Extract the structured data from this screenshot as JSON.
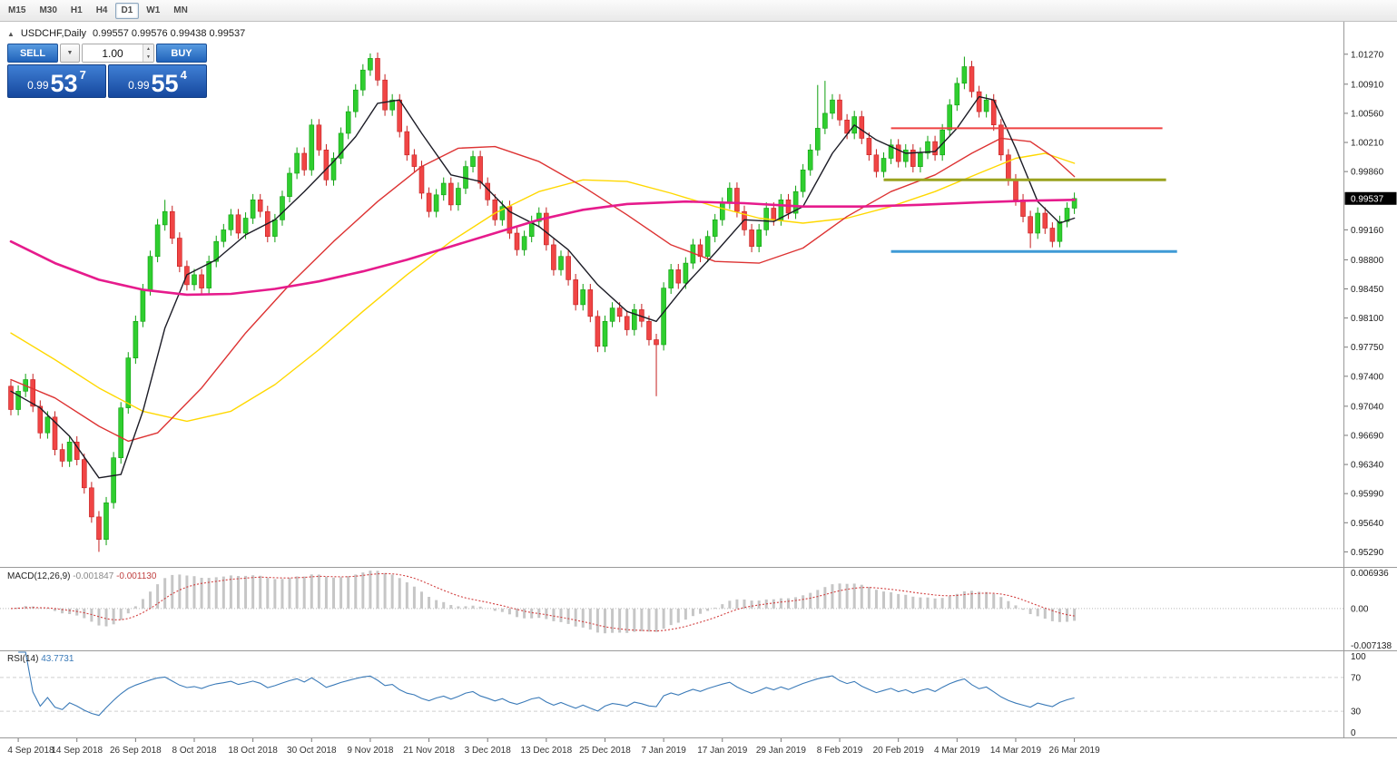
{
  "toolbar": {
    "timeframes": [
      "M15",
      "M30",
      "H1",
      "H4",
      "D1",
      "W1",
      "MN"
    ],
    "selected": "D1"
  },
  "chart_header": {
    "collapse_icon": "▲",
    "title": "USDCHF,Daily",
    "ohlc": "0.99557 0.99576 0.99438 0.99537"
  },
  "trade_panel": {
    "sell_label": "SELL",
    "buy_label": "BUY",
    "volume": "1.00",
    "dropdown_icon": "▼",
    "spinner_up": "▲",
    "spinner_down": "▼",
    "sell_price": {
      "prefix": "0.99",
      "big": "53",
      "sup": "7"
    },
    "buy_price": {
      "prefix": "0.99",
      "big": "55",
      "sup": "4"
    }
  },
  "price_axis": {
    "labels": [
      "1.01270",
      "1.00910",
      "1.00560",
      "1.00210",
      "0.99860",
      "0.99160",
      "0.98800",
      "0.98450",
      "0.98100",
      "0.97750",
      "0.97400",
      "0.97040",
      "0.96690",
      "0.96340",
      "0.95990",
      "0.95640",
      "0.95290"
    ],
    "current": "0.99537",
    "current_bg": "#000000"
  },
  "time_axis": {
    "labels": [
      {
        "i": 1,
        "t": "4 Sep 2018"
      },
      {
        "i": 9,
        "t": "14 Sep 2018"
      },
      {
        "i": 17,
        "t": "26 Sep 2018"
      },
      {
        "i": 25,
        "t": "8 Oct 2018"
      },
      {
        "i": 33,
        "t": "18 Oct 2018"
      },
      {
        "i": 41,
        "t": "30 Oct 2018"
      },
      {
        "i": 49,
        "t": "9 Nov 2018"
      },
      {
        "i": 57,
        "t": "21 Nov 2018"
      },
      {
        "i": 65,
        "t": "3 Dec 2018"
      },
      {
        "i": 73,
        "t": "13 Dec 2018"
      },
      {
        "i": 81,
        "t": "25 Dec 2018"
      },
      {
        "i": 89,
        "t": "7 Jan 2019"
      },
      {
        "i": 97,
        "t": "17 Jan 2019"
      },
      {
        "i": 105,
        "t": "29 Jan 2019"
      },
      {
        "i": 113,
        "t": "8 Feb 2019"
      },
      {
        "i": 121,
        "t": "20 Feb 2019"
      },
      {
        "i": 129,
        "t": "4 Mar 2019"
      },
      {
        "i": 137,
        "t": "14 Mar 2019"
      },
      {
        "i": 145,
        "t": "26 Mar 2019"
      }
    ]
  },
  "chart_data": {
    "type": "candlestick",
    "symbol": "USDCHF",
    "timeframe": "Daily",
    "title": "USDCHF,Daily",
    "open_display": "0.99557",
    "high_display": "0.99576",
    "low_display": "0.99438",
    "close_display": "0.99537",
    "ylim": [
      0.95105,
      1.0166
    ],
    "first_open": 0.9728,
    "closes": [
      0.97,
      0.9722,
      0.9736,
      0.9704,
      0.9672,
      0.9691,
      0.9652,
      0.9638,
      0.9661,
      0.964,
      0.9606,
      0.9571,
      0.9544,
      0.9588,
      0.9642,
      0.9702,
      0.9762,
      0.9806,
      0.9844,
      0.9884,
      0.9922,
      0.9938,
      0.9906,
      0.9872,
      0.985,
      0.9862,
      0.9846,
      0.9878,
      0.9902,
      0.9916,
      0.9934,
      0.9912,
      0.993,
      0.9952,
      0.9938,
      0.9908,
      0.9928,
      0.9956,
      0.9984,
      1.0008,
      0.9988,
      1.0042,
      1.0012,
      0.9976,
      1.0002,
      1.0032,
      1.0058,
      1.0084,
      1.0108,
      1.0122,
      1.0096,
      1.006,
      1.0072,
      1.0034,
      1.0006,
      0.9992,
      0.996,
      0.9938,
      0.9958,
      0.9972,
      0.9946,
      0.9966,
      0.9992,
      1.0004,
      0.9972,
      0.9952,
      0.9928,
      0.9944,
      0.9912,
      0.9892,
      0.9908,
      0.9926,
      0.9936,
      0.9898,
      0.9868,
      0.9884,
      0.9856,
      0.9826,
      0.9844,
      0.9812,
      0.9776,
      0.9806,
      0.9822,
      0.9812,
      0.9796,
      0.982,
      0.9806,
      0.9784,
      0.9778,
      0.9846,
      0.9868,
      0.9852,
      0.9876,
      0.9898,
      0.9884,
      0.9908,
      0.9928,
      0.9948,
      0.9966,
      0.9938,
      0.9916,
      0.9896,
      0.9916,
      0.9942,
      0.9928,
      0.9952,
      0.9936,
      0.9962,
      0.9988,
      1.0012,
      1.0038,
      1.0056,
      1.0072,
      1.0048,
      1.0032,
      1.0052,
      1.0026,
      1.0006,
      0.9986,
      1.0002,
      1.0018,
      0.9998,
      1.0012,
      0.9992,
      1.0008,
      1.0022,
      1.0006,
      1.0036,
      1.0066,
      1.0092,
      1.0112,
      1.0082,
      1.0058,
      1.0072,
      1.0042,
      1.0006,
      0.9976,
      0.9952,
      0.9932,
      0.9912,
      0.9936,
      0.9918,
      0.9902,
      0.9926,
      0.9942,
      0.99537
    ],
    "wick_overrides": {
      "12": {
        "low": 0.9529
      },
      "21": {
        "high": 0.9952
      },
      "49": {
        "high": 1.0128
      },
      "88": {
        "low": 0.9716
      },
      "110": {
        "high": 1.009
      },
      "111": {
        "high": 1.0095
      },
      "130": {
        "high": 1.0124
      },
      "139": {
        "low": 0.9894
      }
    },
    "candle_colors": {
      "up": "#2fce2f",
      "up_border": "#0fa00f",
      "down": "#f04545",
      "down_border": "#c42020"
    },
    "overlays": [
      {
        "name": "ma-yellow",
        "color": "#ffd800",
        "width": 1.4,
        "points": [
          [
            0,
            0.9792
          ],
          [
            6,
            0.976
          ],
          [
            12,
            0.9726
          ],
          [
            18,
            0.9698
          ],
          [
            24,
            0.9686
          ],
          [
            30,
            0.9698
          ],
          [
            36,
            0.973
          ],
          [
            42,
            0.9772
          ],
          [
            48,
            0.9818
          ],
          [
            54,
            0.9862
          ],
          [
            60,
            0.9902
          ],
          [
            66,
            0.9936
          ],
          [
            72,
            0.9962
          ],
          [
            78,
            0.9976
          ],
          [
            84,
            0.9974
          ],
          [
            90,
            0.996
          ],
          [
            96,
            0.9944
          ],
          [
            102,
            0.993
          ],
          [
            108,
            0.9924
          ],
          [
            114,
            0.993
          ],
          [
            120,
            0.9944
          ],
          [
            126,
            0.9962
          ],
          [
            132,
            0.9984
          ],
          [
            137,
            1.0002
          ],
          [
            141,
            1.0008
          ],
          [
            145,
            0.9996
          ]
        ]
      },
      {
        "name": "ma-red",
        "color": "#dd3333",
        "width": 1.4,
        "points": [
          [
            0,
            0.9736
          ],
          [
            6,
            0.9714
          ],
          [
            12,
            0.968
          ],
          [
            16,
            0.9662
          ],
          [
            20,
            0.9672
          ],
          [
            26,
            0.9726
          ],
          [
            32,
            0.9792
          ],
          [
            38,
            0.985
          ],
          [
            44,
            0.9902
          ],
          [
            50,
            0.995
          ],
          [
            56,
            0.9992
          ],
          [
            61,
            1.0014
          ],
          [
            66,
            1.0016
          ],
          [
            72,
            0.9998
          ],
          [
            78,
            0.9968
          ],
          [
            84,
            0.9934
          ],
          [
            90,
            0.9898
          ],
          [
            96,
            0.9878
          ],
          [
            102,
            0.9876
          ],
          [
            108,
            0.9894
          ],
          [
            114,
            0.9932
          ],
          [
            120,
            0.9962
          ],
          [
            126,
            0.9982
          ],
          [
            131,
            1.0008
          ],
          [
            135,
            1.0026
          ],
          [
            139,
            1.0022
          ],
          [
            142,
            1.0004
          ],
          [
            145,
            0.998
          ]
        ]
      },
      {
        "name": "ma-black",
        "color": "#1c1c26",
        "width": 1.4,
        "points": [
          [
            0,
            0.9722
          ],
          [
            4,
            0.9702
          ],
          [
            8,
            0.9668
          ],
          [
            12,
            0.9618
          ],
          [
            15,
            0.9622
          ],
          [
            18,
            0.9698
          ],
          [
            21,
            0.9798
          ],
          [
            24,
            0.9862
          ],
          [
            28,
            0.988
          ],
          [
            32,
            0.991
          ],
          [
            36,
            0.9928
          ],
          [
            40,
            0.9962
          ],
          [
            44,
            0.9998
          ],
          [
            47,
            1.0028
          ],
          [
            50,
            1.0068
          ],
          [
            53,
            1.0072
          ],
          [
            56,
            1.0032
          ],
          [
            60,
            0.9982
          ],
          [
            64,
            0.9974
          ],
          [
            68,
            0.9938
          ],
          [
            72,
            0.992
          ],
          [
            76,
            0.9892
          ],
          [
            80,
            0.985
          ],
          [
            84,
            0.9818
          ],
          [
            88,
            0.9806
          ],
          [
            92,
            0.985
          ],
          [
            96,
            0.9888
          ],
          [
            100,
            0.9928
          ],
          [
            104,
            0.9926
          ],
          [
            108,
            0.9944
          ],
          [
            112,
            1.0008
          ],
          [
            115,
            1.0042
          ],
          [
            118,
            1.0024
          ],
          [
            122,
            1.0008
          ],
          [
            126,
            1.001
          ],
          [
            129,
            1.0038
          ],
          [
            132,
            1.0076
          ],
          [
            134,
            1.0072
          ],
          [
            137,
            1.0014
          ],
          [
            140,
            0.995
          ],
          [
            143,
            0.9924
          ],
          [
            145,
            0.993
          ]
        ]
      },
      {
        "name": "ma-magenta",
        "color": "#e61b8c",
        "width": 2.6,
        "points": [
          [
            0,
            0.9902
          ],
          [
            6,
            0.9876
          ],
          [
            12,
            0.9856
          ],
          [
            18,
            0.9844
          ],
          [
            24,
            0.9838
          ],
          [
            30,
            0.9839
          ],
          [
            36,
            0.9845
          ],
          [
            42,
            0.9854
          ],
          [
            48,
            0.9866
          ],
          [
            54,
            0.988
          ],
          [
            60,
            0.9896
          ],
          [
            66,
            0.9912
          ],
          [
            72,
            0.9928
          ],
          [
            78,
            0.994
          ],
          [
            84,
            0.9947
          ],
          [
            92,
            0.995
          ],
          [
            100,
            0.9948
          ],
          [
            108,
            0.9944
          ],
          [
            116,
            0.9944
          ],
          [
            124,
            0.9946
          ],
          [
            132,
            0.9949
          ],
          [
            139,
            0.9951
          ],
          [
            145,
            0.9952
          ]
        ]
      }
    ],
    "hlines": [
      {
        "name": "resistance-line",
        "price": 1.0038,
        "color": "#ef4040",
        "width": 2,
        "from": 120,
        "to": 157
      },
      {
        "name": "pivot-line",
        "price": 0.9976,
        "color": "#9aa21e",
        "width": 3,
        "from": 119,
        "to": 157.5
      },
      {
        "name": "support-line",
        "price": 0.989,
        "color": "#3f9ad6",
        "width": 3,
        "from": 120,
        "to": 159
      }
    ],
    "macd": {
      "label": "MACD(12,26,9)",
      "value_main": "-0.001847",
      "value_signal": "-0.001130",
      "fast": 12,
      "slow": 26,
      "signal_period": 9,
      "axis_max": 0.006936,
      "axis_min": -0.007138,
      "axis_max_label": "0.006936",
      "axis_zero_label": "0.00",
      "axis_min_label": "-0.007138",
      "histogram_color": "#c6c6c6",
      "signal_color": "#d24040"
    },
    "rsi": {
      "label": "RSI(14)",
      "value": "43.7731",
      "period": 14,
      "line_color": "#3a7ab8",
      "levels": [
        {
          "v": 100,
          "t": "100"
        },
        {
          "v": 70,
          "t": "70"
        },
        {
          "v": 30,
          "t": "30"
        },
        {
          "v": 0,
          "t": "0"
        }
      ],
      "dashed_levels": [
        70,
        30
      ]
    }
  }
}
